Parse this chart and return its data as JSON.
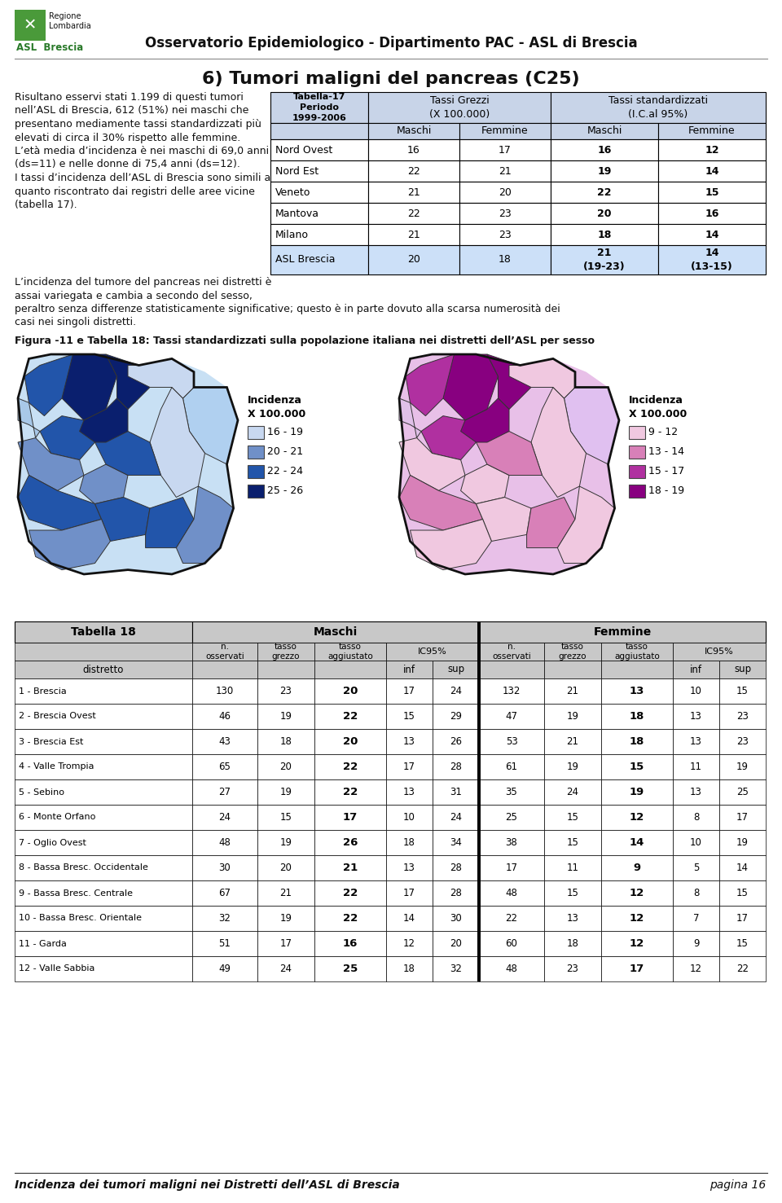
{
  "title_header": "Osservatorio Epidemiologico - Dipartimento PAC - ASL di Brescia",
  "section_title": "6) Tumori maligni del pancreas (C25)",
  "intro_lines": [
    "Risultano esservi stati 1.199 di questi tumori",
    "nell’ASL di Brescia, 612 (51%) nei maschi che",
    "presentano mediamente tassi standardizzati più",
    "elevati di circa il 30% rispetto alle femmine.",
    "L’età media d’incidenza è nei maschi di 69,0 anni",
    "(ds=11) e nelle donne di 75,4 anni (ds=12).",
    "I tassi d’incidenza dell’ASL di Brescia sono simili a",
    "quanto riscontrato dai registri delle aree vicine",
    "(tabella 17)."
  ],
  "para2_lines": [
    "L’incidenza del tumore del pancreas nei distretti è",
    "assai variegata e cambia a secondo del sesso,",
    "peraltro senza differenze statisticamente significative; questo è in parte dovuto alla scarsa numerosità dei",
    "casi nei singoli distretti."
  ],
  "table17_rows": [
    [
      "Nord Ovest",
      "16",
      "17",
      "16",
      "12"
    ],
    [
      "Nord Est",
      "22",
      "21",
      "19",
      "14"
    ],
    [
      "Veneto",
      "21",
      "20",
      "22",
      "15"
    ],
    [
      "Mantova",
      "22",
      "23",
      "20",
      "16"
    ],
    [
      "Milano",
      "21",
      "23",
      "18",
      "14"
    ],
    [
      "ASL Brescia",
      "20",
      "18",
      "21\n(19-23)",
      "14\n(13-15)"
    ]
  ],
  "fig_caption": "Figura -11 e Tabella 18: Tassi standardizzati sulla popolazione italiana nei distretti dell’ASL per sesso",
  "table18_rows": [
    [
      "1 - Brescia",
      "130",
      "23",
      "20",
      "17",
      "24",
      "132",
      "21",
      "13",
      "10",
      "15"
    ],
    [
      "2 - Brescia Ovest",
      "46",
      "19",
      "22",
      "15",
      "29",
      "47",
      "19",
      "18",
      "13",
      "23"
    ],
    [
      "3 - Brescia Est",
      "43",
      "18",
      "20",
      "13",
      "26",
      "53",
      "21",
      "18",
      "13",
      "23"
    ],
    [
      "4 - Valle Trompia",
      "65",
      "20",
      "22",
      "17",
      "28",
      "61",
      "19",
      "15",
      "11",
      "19"
    ],
    [
      "5 - Sebino",
      "27",
      "19",
      "22",
      "13",
      "31",
      "35",
      "24",
      "19",
      "13",
      "25"
    ],
    [
      "6 - Monte Orfano",
      "24",
      "15",
      "17",
      "10",
      "24",
      "25",
      "15",
      "12",
      "8",
      "17"
    ],
    [
      "7 - Oglio Ovest",
      "48",
      "19",
      "26",
      "18",
      "34",
      "38",
      "15",
      "14",
      "10",
      "19"
    ],
    [
      "8 - Bassa Bresc. Occidentale",
      "30",
      "20",
      "21",
      "13",
      "28",
      "17",
      "11",
      "9",
      "5",
      "14"
    ],
    [
      "9 - Bassa Bresc. Centrale",
      "67",
      "21",
      "22",
      "17",
      "28",
      "48",
      "15",
      "12",
      "8",
      "15"
    ],
    [
      "10 - Bassa Bresc. Orientale",
      "32",
      "19",
      "22",
      "14",
      "30",
      "22",
      "13",
      "12",
      "7",
      "17"
    ],
    [
      "11 - Garda",
      "51",
      "17",
      "16",
      "12",
      "20",
      "60",
      "18",
      "12",
      "9",
      "15"
    ],
    [
      "12 - Valle Sabbia",
      "49",
      "24",
      "25",
      "18",
      "32",
      "48",
      "23",
      "17",
      "12",
      "22"
    ]
  ],
  "legend_m": [
    [
      "#c8d8f0",
      "16 - 19"
    ],
    [
      "#7090c8",
      "20 - 21"
    ],
    [
      "#2255aa",
      "22 - 24"
    ],
    [
      "#0a1f6e",
      "25 - 26"
    ]
  ],
  "legend_f": [
    [
      "#f0c8e0",
      "9 - 12"
    ],
    [
      "#d880b8",
      "13 - 14"
    ],
    [
      "#b030a0",
      "15 - 17"
    ],
    [
      "#880080",
      "18 - 19"
    ]
  ],
  "footer_left": "Incidenza dei tumori maligni nei Distretti dell’ASL di Brescia",
  "footer_right": "pagina 16",
  "table17_header_bg": "#c8d4e8",
  "table18_header_bg": "#c8c8c8",
  "asl_row_bg": "#cce0f8",
  "white": "#ffffff",
  "black": "#000000",
  "green_logo": "#4a9a3a",
  "green_asl": "#2a7a2a"
}
